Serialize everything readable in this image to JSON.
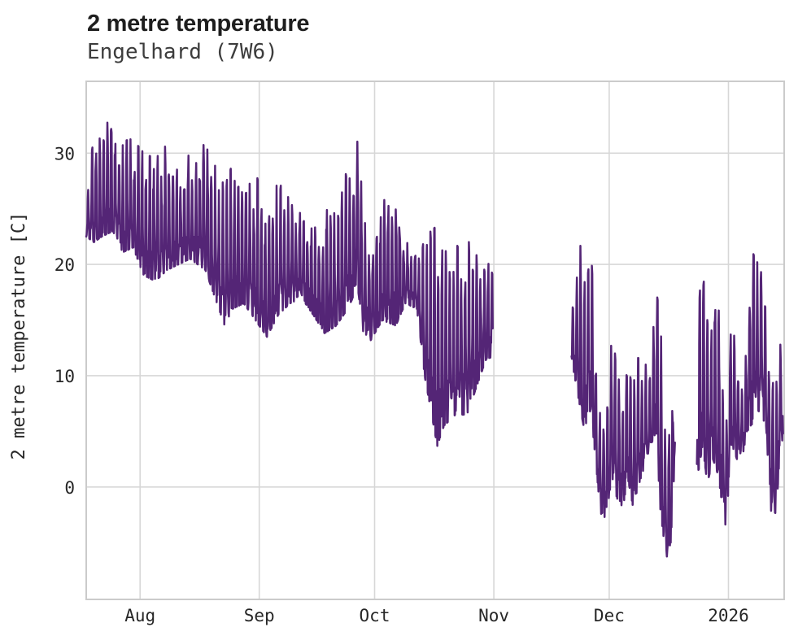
{
  "header": {
    "title": "2 metre temperature",
    "subtitle": "Engelhard (7W6)"
  },
  "chart_data": {
    "type": "line",
    "title": "2 metre temperature",
    "subtitle": "Engelhard (7W6)",
    "xlabel": "",
    "ylabel": "2 metre temperature [C]",
    "legend": "none",
    "grid": true,
    "line_color": "#542576",
    "grid_color": "#d7d7d7",
    "axis_border_color": "#cbcbcb",
    "background_color": "#ffffff",
    "text_color": "#262626",
    "ylim": [
      -10.1,
      36.45
    ],
    "yticks": [
      {
        "value": 0,
        "label": "0"
      },
      {
        "value": 10,
        "label": "10"
      },
      {
        "value": 20,
        "label": "20"
      },
      {
        "value": 30,
        "label": "30"
      }
    ],
    "x_unit": "days from left edge of plot; sub-daily (hourly) temperature series, values in deg C",
    "xlim_days": [
      0,
      181.5
    ],
    "xticks": [
      {
        "day": 14,
        "label": "Aug"
      },
      {
        "day": 45,
        "label": "Sep"
      },
      {
        "day": 75,
        "label": "Oct"
      },
      {
        "day": 106,
        "label": "Nov"
      },
      {
        "day": 136,
        "label": "Dec"
      },
      {
        "day": 167,
        "label": "2026"
      }
    ],
    "segments": [
      {
        "note": "continuous record, mid-July through end of October; daily min/max envelope control points [day, min, max]",
        "envelope": [
          [
            0,
            22.5,
            26.5
          ],
          [
            2,
            22,
            31.5
          ],
          [
            4,
            22.5,
            32.5
          ],
          [
            7,
            23,
            34.4
          ],
          [
            9,
            21,
            31
          ],
          [
            12,
            21.5,
            31.3
          ],
          [
            15,
            19,
            30
          ],
          [
            18,
            18.5,
            29.5
          ],
          [
            21,
            19.5,
            30.8
          ],
          [
            24,
            20,
            28.5
          ],
          [
            27,
            20.5,
            31
          ],
          [
            31,
            19.5,
            30.7
          ],
          [
            34,
            16.5,
            28.5
          ],
          [
            36,
            14.5,
            27
          ],
          [
            38,
            16,
            29
          ],
          [
            41,
            16.5,
            26
          ],
          [
            44,
            15,
            28.5
          ],
          [
            47,
            13.5,
            24
          ],
          [
            50,
            15.5,
            28.8
          ],
          [
            53,
            16.5,
            25.5
          ],
          [
            56,
            17,
            24.5
          ],
          [
            59,
            15.5,
            23.5
          ],
          [
            62,
            13.8,
            24.5
          ],
          [
            65,
            14.5,
            26.5
          ],
          [
            68,
            16,
            29.5
          ],
          [
            70.6,
            18,
            31.9
          ],
          [
            72,
            14,
            25
          ],
          [
            74,
            13.2,
            23.5
          ],
          [
            77,
            15,
            25.5
          ],
          [
            80.5,
            14.5,
            27.5
          ],
          [
            83,
            16.5,
            22.5
          ],
          [
            86,
            16,
            21.5
          ],
          [
            88,
            10,
            22.5
          ],
          [
            91.3,
            3.7,
            23.5
          ],
          [
            93,
            5.5,
            23
          ],
          [
            96,
            6.5,
            21.5
          ],
          [
            99,
            6.5,
            22.5
          ],
          [
            102,
            9.5,
            20.5
          ],
          [
            104,
            11.5,
            21.3
          ],
          [
            105.7,
            11.7,
            19
          ]
        ]
      },
      {
        "note": "second record, late November to mid-December (gap before and after)",
        "envelope": [
          [
            126.2,
            11.5,
            15.5
          ],
          [
            128,
            8,
            23.2
          ],
          [
            129.5,
            5.2,
            20
          ],
          [
            131.2,
            7,
            24.6
          ],
          [
            132.5,
            2.3,
            12
          ],
          [
            134,
            -3.5,
            6.5
          ],
          [
            135.5,
            -2,
            8
          ],
          [
            136.7,
            1,
            16
          ],
          [
            138,
            -1,
            9.5
          ],
          [
            139.5,
            -1.8,
            10
          ],
          [
            141,
            0.5,
            10.5
          ],
          [
            142.2,
            -1.8,
            9
          ],
          [
            143.5,
            0,
            11.6
          ],
          [
            145.3,
            2,
            11.3
          ],
          [
            146.5,
            3.5,
            9.5
          ],
          [
            148.2,
            5,
            17.8
          ],
          [
            149.3,
            -2,
            15
          ],
          [
            150.8,
            -6.5,
            4
          ],
          [
            152,
            -5,
            9
          ],
          [
            152.8,
            0.5,
            12.8
          ],
          [
            153.1,
            4,
            13
          ]
        ]
      },
      {
        "note": "third record, late December to mid-January 2026",
        "envelope": [
          [
            158.8,
            0.5,
            18
          ],
          [
            160.3,
            3.8,
            19.6
          ],
          [
            161.5,
            0.3,
            15
          ],
          [
            163,
            2.5,
            17.2
          ],
          [
            164.4,
            1,
            20.8
          ],
          [
            165.5,
            -2,
            9
          ],
          [
            166.5,
            -4.2,
            6
          ],
          [
            167.3,
            2.6,
            13
          ],
          [
            168.4,
            3.5,
            15.6
          ],
          [
            169.5,
            2.1,
            9.5
          ],
          [
            170.6,
            2.6,
            11
          ],
          [
            171.8,
            5,
            13.5
          ],
          [
            173,
            5.5,
            21.5
          ],
          [
            174.3,
            7,
            20
          ],
          [
            175.8,
            6.5,
            21.7
          ],
          [
            177,
            4,
            16
          ],
          [
            178.2,
            -2.7,
            9
          ],
          [
            179.3,
            -2.3,
            10
          ],
          [
            180.3,
            2,
            12.5
          ],
          [
            181.2,
            4.8,
            14.9
          ]
        ]
      }
    ]
  }
}
